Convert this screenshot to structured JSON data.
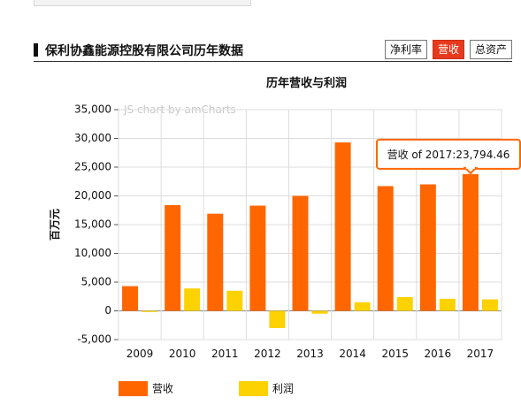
{
  "section": {
    "title": "保利协鑫能源控股有限公司历年数据",
    "tabs": [
      {
        "label": "净利率",
        "active": false
      },
      {
        "label": "营收",
        "active": true
      },
      {
        "label": "总资产",
        "active": false
      }
    ]
  },
  "watermark": "JS chart by amCharts",
  "chart_data": {
    "type": "bar",
    "title": "历年营收与利润",
    "ylabel": "百万元",
    "xlabel": "",
    "categories": [
      "2009",
      "2010",
      "2011",
      "2012",
      "2013",
      "2014",
      "2015",
      "2016",
      "2017"
    ],
    "series": [
      {
        "name": "营收",
        "color": "#ff6600",
        "values": [
          4300,
          18400,
          16900,
          18300,
          20000,
          29300,
          21700,
          22000,
          23794.46
        ]
      },
      {
        "name": "利润",
        "color": "#fcd202",
        "values": [
          -200,
          3900,
          3500,
          -3000,
          -500,
          1500,
          2400,
          2100,
          2000
        ]
      }
    ],
    "ylim": [
      -5000,
      35000
    ],
    "yticks": [
      "-5,000",
      "0",
      "5,000",
      "10,000",
      "15,000",
      "20,000",
      "25,000",
      "30,000",
      "35,000"
    ],
    "grid": true,
    "legend_position": "bottom-left",
    "tooltip": {
      "series": 0,
      "category": "2017",
      "text": "营收 of 2017:23,794.46"
    }
  },
  "colors": {
    "accent": "#e8391d",
    "tooltip_border": "#ff6600"
  }
}
